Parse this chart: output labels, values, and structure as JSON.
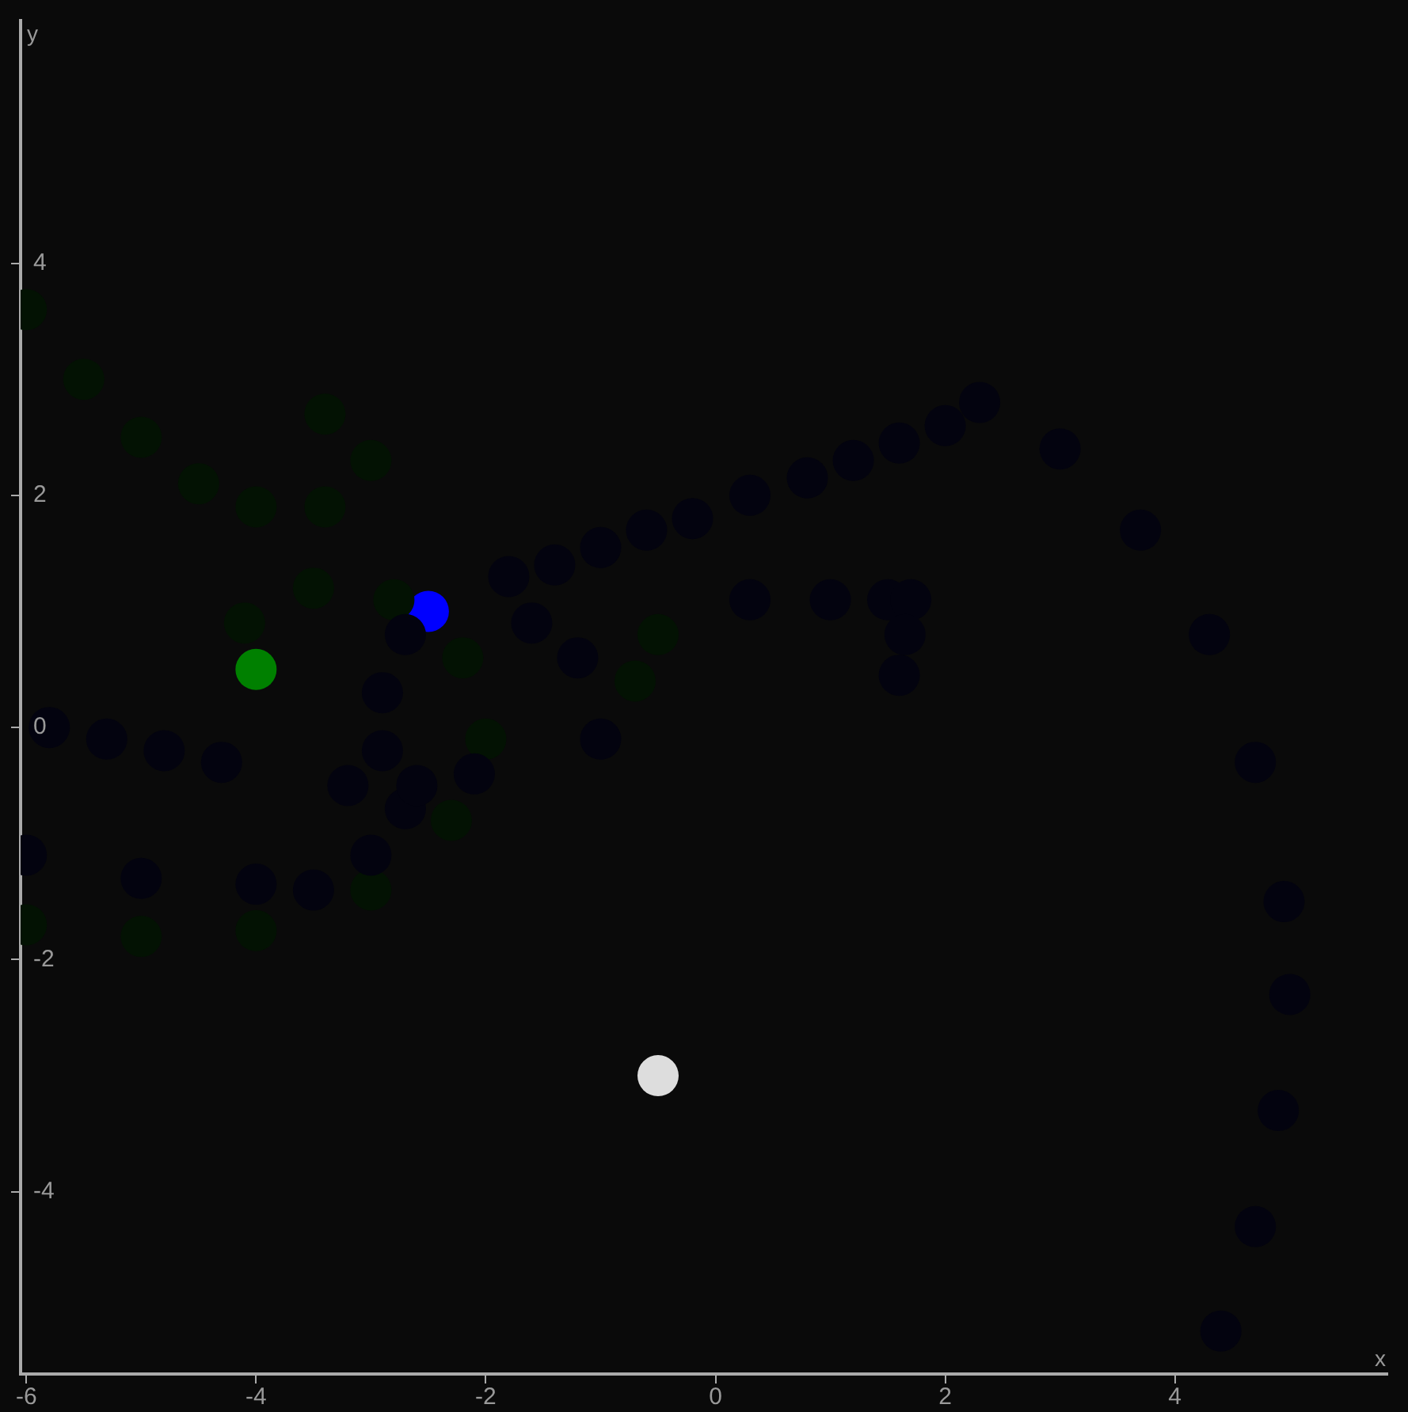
{
  "chart_data": {
    "type": "scatter",
    "xlabel": "x",
    "ylabel": "y",
    "xlim": [
      -6.05,
      5.85
    ],
    "ylim": [
      -5.57,
      6.09
    ],
    "xticks": [
      -6,
      -4,
      -2,
      0,
      2,
      4
    ],
    "yticks": [
      -4,
      -2,
      0,
      2,
      4
    ],
    "grid": false,
    "legend": false,
    "marker": "circle",
    "series": [
      {
        "color": "#03030f",
        "x": [
          2.3,
          3.0,
          3.7,
          4.3,
          4.7,
          4.95,
          5.0,
          4.9,
          4.7,
          4.4,
          -1.8,
          -1.4,
          -1.0,
          -0.6,
          -0.2,
          0.3,
          0.8,
          1.2,
          1.6,
          2.0,
          0.3,
          1.0,
          1.5,
          1.7,
          1.65,
          1.6,
          -6,
          -5,
          -4,
          -3.5,
          -3,
          -2.7,
          -2.9,
          -2.9,
          -2.7,
          -5.8,
          -5.3,
          -4.8,
          -4.3,
          -3.2,
          -2.6,
          -2.1,
          -1.0,
          -1.2,
          -1.6
        ],
        "values": [
          2.8,
          2.4,
          1.7,
          0.8,
          -0.3,
          -1.5,
          -2.3,
          -3.3,
          -4.3,
          -5.2,
          1.3,
          1.4,
          1.55,
          1.7,
          1.8,
          2.0,
          2.15,
          2.3,
          2.45,
          2.6,
          1.1,
          1.1,
          1.1,
          1.1,
          0.8,
          0.45,
          -1.1,
          -1.3,
          -1.35,
          -1.4,
          -1.1,
          -0.7,
          -0.2,
          0.3,
          0.8,
          0,
          -0.1,
          -0.2,
          -0.3,
          -0.5,
          -0.5,
          -0.4,
          -0.1,
          0.6,
          0.9
        ]
      },
      {
        "color": "#031203",
        "x": [
          -6,
          -5.5,
          -5,
          -4.5,
          -4,
          -3.4,
          -3,
          -3.4,
          -6,
          -5,
          -4,
          -3,
          -2.3,
          -2.0,
          -2.2,
          -2.8,
          -3.5,
          -4.1,
          -0.5,
          -0.7
        ],
        "values": [
          3.6,
          3.0,
          2.5,
          2.1,
          1.9,
          1.9,
          2.3,
          2.7,
          -1.7,
          -1.8,
          -1.75,
          -1.4,
          -0.8,
          -0.1,
          0.6,
          1.1,
          1.2,
          0.9,
          0.8,
          0.4
        ]
      },
      {
        "color": "#008000",
        "x": [
          -4
        ],
        "values": [
          0.5
        ]
      },
      {
        "color": "#0000ff",
        "x": [
          -2.5
        ],
        "values": [
          1
        ]
      },
      {
        "color": "#dddddd",
        "x": [
          -0.5
        ],
        "values": [
          -3
        ]
      }
    ]
  }
}
